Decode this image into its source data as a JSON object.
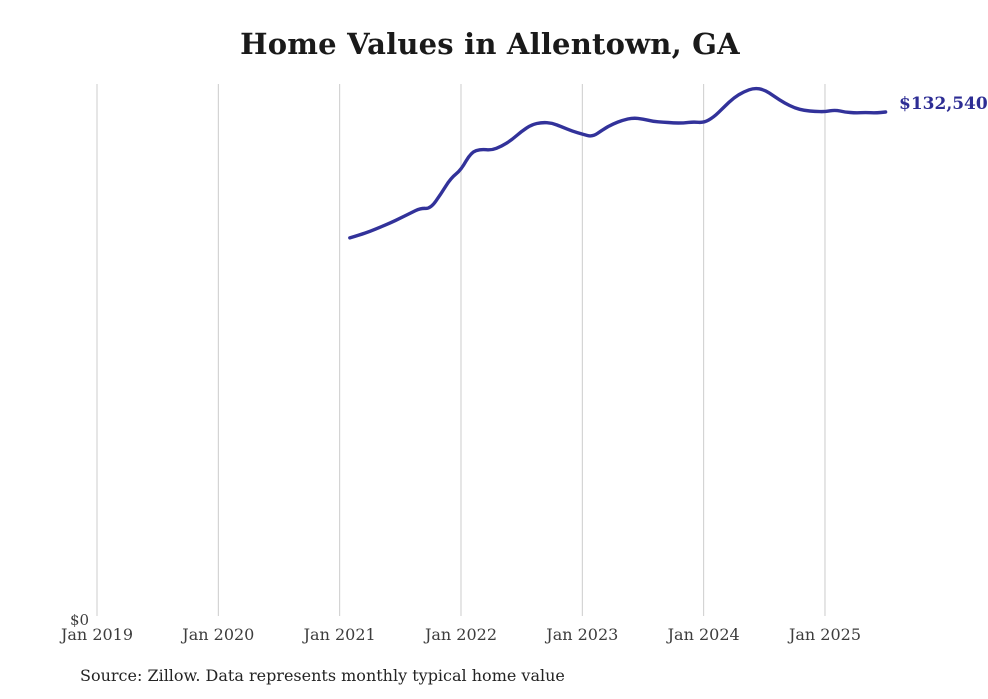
{
  "page": {
    "background_color": "#ffffff"
  },
  "chart_data": {
    "type": "line",
    "title": "Home Values in Allentown, GA",
    "xlabel": "",
    "ylabel": "",
    "x_tick_labels": [
      "Jan 2019",
      "Jan 2020",
      "Jan 2021",
      "Jan 2022",
      "Jan 2023",
      "Jan 2024",
      "Jan 2025"
    ],
    "y_tick_labels": [
      "$0"
    ],
    "ylim": [
      0,
      140000
    ],
    "x_range": [
      "2019-01",
      "2025-12"
    ],
    "grid": "vertical-year-gridlines",
    "legend_position": "none",
    "line_color": "#32329a",
    "grid_color": "#cccccc",
    "end_label": "$132,540",
    "end_value": 132540,
    "series": [
      {
        "name": "Monthly typical home value",
        "months": [
          "2021-02",
          "2021-03",
          "2021-04",
          "2021-05",
          "2021-06",
          "2021-07",
          "2021-08",
          "2021-09",
          "2021-10",
          "2021-11",
          "2021-12",
          "2022-01",
          "2022-02",
          "2022-03",
          "2022-04",
          "2022-05",
          "2022-06",
          "2022-07",
          "2022-08",
          "2022-09",
          "2022-10",
          "2022-11",
          "2022-12",
          "2023-01",
          "2023-02",
          "2023-03",
          "2023-04",
          "2023-05",
          "2023-06",
          "2023-07",
          "2023-08",
          "2023-09",
          "2023-10",
          "2023-11",
          "2023-12",
          "2024-01",
          "2024-02",
          "2024-03",
          "2024-04",
          "2024-05",
          "2024-06",
          "2024-07",
          "2024-08",
          "2024-09",
          "2024-10",
          "2024-11",
          "2024-12",
          "2025-01",
          "2025-02",
          "2025-03",
          "2025-04",
          "2025-05",
          "2025-06",
          "2025-07"
        ],
        "values": [
          99500,
          100300,
          101200,
          102300,
          103400,
          104700,
          106000,
          107300,
          107200,
          111000,
          115200,
          117300,
          122000,
          122800,
          122500,
          123500,
          125200,
          127500,
          129250,
          129800,
          129650,
          128600,
          127500,
          126750,
          126000,
          127850,
          129400,
          130400,
          131000,
          130700,
          130050,
          129900,
          129650,
          129650,
          129950,
          129700,
          131200,
          133800,
          136300,
          137900,
          138850,
          138400,
          136600,
          134900,
          133600,
          132900,
          132700,
          132600,
          133100,
          132500,
          132300,
          132400,
          132300,
          132540
        ]
      }
    ]
  },
  "source": {
    "text": "Source: Zillow. Data represents monthly typical home value"
  }
}
